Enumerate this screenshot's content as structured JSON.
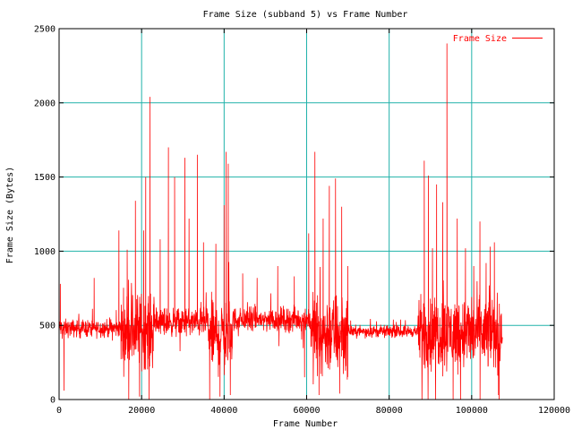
{
  "chart_data": {
    "type": "line",
    "title": "Frame Size (subband 5) vs Frame Number",
    "xlabel": "Frame Number",
    "ylabel": "Frame Size (Bytes)",
    "xlim": [
      0,
      120000
    ],
    "ylim": [
      0,
      2500
    ],
    "x_ticks": [
      0,
      20000,
      40000,
      60000,
      80000,
      100000,
      120000
    ],
    "y_ticks": [
      0,
      500,
      1000,
      1500,
      2000,
      2500
    ],
    "x_tick_labels": [
      "0",
      "20000",
      "40000",
      "60000",
      "80000",
      "100000",
      "120000"
    ],
    "y_tick_labels": [
      "0",
      "500",
      "1000",
      "1500",
      "2000",
      "2500"
    ],
    "grid": true,
    "grid_color": "#20b2aa",
    "legend_position": "top-right",
    "series": [
      {
        "name": "Frame Size",
        "color": "#ff0000",
        "x_range": [
          0,
          107500
        ],
        "segments": [
          {
            "from": 0,
            "to": 15000,
            "base": 480,
            "amp": 55
          },
          {
            "from": 15000,
            "to": 23000,
            "base": 470,
            "amp": 230
          },
          {
            "from": 23000,
            "to": 36000,
            "base": 520,
            "amp": 85
          },
          {
            "from": 36000,
            "to": 42000,
            "base": 430,
            "amp": 230
          },
          {
            "from": 42000,
            "to": 61000,
            "base": 540,
            "amp": 75
          },
          {
            "from": 61000,
            "to": 70000,
            "base": 440,
            "amp": 250
          },
          {
            "from": 70000,
            "to": 87000,
            "base": 460,
            "amp": 35
          },
          {
            "from": 87000,
            "to": 107500,
            "base": 450,
            "amp": 230
          }
        ],
        "peaks": [
          [
            300,
            780
          ],
          [
            1200,
            60
          ],
          [
            8500,
            820
          ],
          [
            14500,
            1140
          ],
          [
            16500,
            1010
          ],
          [
            18500,
            1340
          ],
          [
            19500,
            20
          ],
          [
            20500,
            1140
          ],
          [
            21000,
            1500
          ],
          [
            21800,
            0
          ],
          [
            22000,
            2040
          ],
          [
            24500,
            1080
          ],
          [
            26500,
            1700
          ],
          [
            28000,
            1500
          ],
          [
            30500,
            1630
          ],
          [
            31500,
            1220
          ],
          [
            33500,
            1650
          ],
          [
            35000,
            1060
          ],
          [
            36500,
            0
          ],
          [
            38000,
            1050
          ],
          [
            39000,
            20
          ],
          [
            40000,
            1310
          ],
          [
            40500,
            1670
          ],
          [
            41000,
            1590
          ],
          [
            41500,
            30
          ],
          [
            44500,
            850
          ],
          [
            48000,
            820
          ],
          [
            53000,
            900
          ],
          [
            57000,
            830
          ],
          [
            59500,
            150
          ],
          [
            60500,
            1120
          ],
          [
            62000,
            1670
          ],
          [
            63000,
            30
          ],
          [
            64000,
            1220
          ],
          [
            65500,
            1440
          ],
          [
            67000,
            1490
          ],
          [
            68000,
            40
          ],
          [
            68500,
            1300
          ],
          [
            70000,
            900
          ],
          [
            88500,
            1610
          ],
          [
            89500,
            1510
          ],
          [
            90500,
            1020
          ],
          [
            91500,
            1450
          ],
          [
            93000,
            1330
          ],
          [
            94000,
            2400
          ],
          [
            95500,
            0
          ],
          [
            96500,
            1220
          ],
          [
            98500,
            1020
          ],
          [
            100500,
            900
          ],
          [
            102000,
            1200
          ],
          [
            103500,
            920
          ],
          [
            104500,
            1030
          ],
          [
            105500,
            1060
          ],
          [
            106500,
            30
          ]
        ]
      }
    ]
  }
}
